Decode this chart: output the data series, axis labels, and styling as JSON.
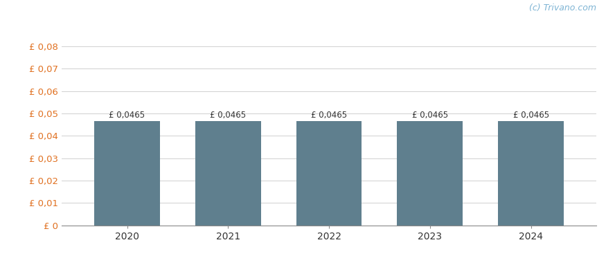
{
  "categories": [
    2020,
    2021,
    2022,
    2023,
    2024
  ],
  "values": [
    0.0465,
    0.0465,
    0.0465,
    0.0465,
    0.0465
  ],
  "bar_color": "#5f7f8e",
  "bar_width": 0.65,
  "ylim": [
    0,
    0.0916
  ],
  "yticks": [
    0,
    0.01,
    0.02,
    0.03,
    0.04,
    0.05,
    0.06,
    0.07,
    0.08
  ],
  "ytick_labels": [
    "£ 0",
    "£ 0,01",
    "£ 0,02",
    "£ 0,03",
    "£ 0,04",
    "£ 0,05",
    "£ 0,06",
    "£ 0,07",
    "£ 0,08"
  ],
  "annotation_label": "£ 0,0465",
  "annotation_fontsize": 8.5,
  "watermark": "(c) Trivano.com",
  "watermark_color": "#7eb4d4",
  "background_color": "#ffffff",
  "grid_color": "#d0d0d0",
  "ytick_color": "#e07020",
  "tick_label_fontsize": 9.5,
  "xlabel_fontsize": 10,
  "annotation_color": "#333333"
}
